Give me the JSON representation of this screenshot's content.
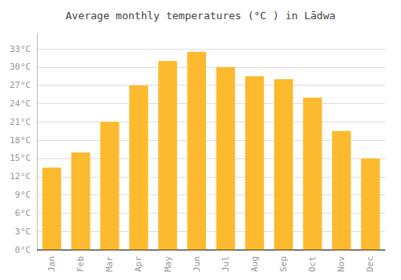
{
  "chart_data": {
    "type": "bar",
    "title": "Average monthly temperatures (°C ) in Lādwa",
    "categories": [
      "Jan",
      "Feb",
      "Mar",
      "Apr",
      "May",
      "Jun",
      "Jul",
      "Aug",
      "Sep",
      "Oct",
      "Nov",
      "Dec"
    ],
    "values": [
      13.5,
      16.0,
      21.0,
      27.0,
      31.0,
      32.5,
      30.0,
      28.5,
      28.0,
      25.0,
      19.5,
      15.0
    ],
    "color": "#FDBA2E",
    "ylim": [
      0,
      35.5
    ],
    "yticks": [
      {
        "value": 0,
        "label": "0°C"
      },
      {
        "value": 3,
        "label": "3°C"
      },
      {
        "value": 6,
        "label": "6°C"
      },
      {
        "value": 9,
        "label": "9°C"
      },
      {
        "value": 12,
        "label": "12°C"
      },
      {
        "value": 15,
        "label": "15°C"
      },
      {
        "value": 18,
        "label": "18°C"
      },
      {
        "value": 21,
        "label": "21°C"
      },
      {
        "value": 24,
        "label": "24°C"
      },
      {
        "value": 27,
        "label": "27°C"
      },
      {
        "value": 30,
        "label": "30°C"
      },
      {
        "value": 33,
        "label": "33°C"
      }
    ],
    "grid": true
  }
}
